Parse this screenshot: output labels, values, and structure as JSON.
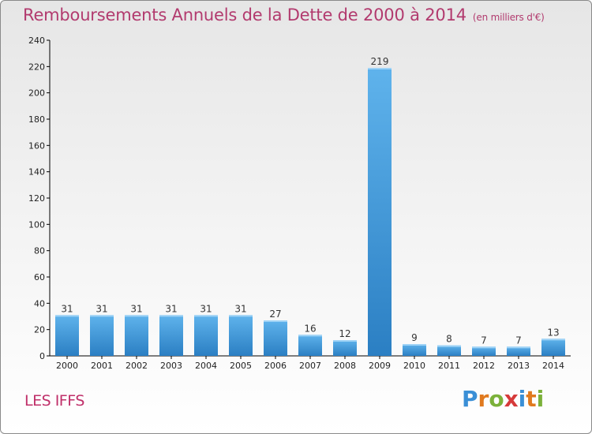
{
  "chart_data": {
    "type": "bar",
    "title": "Remboursements Annuels de la Dette de 2000 à 2014",
    "subtitle": "(en milliers d'€)",
    "xlabel": "",
    "ylabel": "",
    "categories": [
      "2000",
      "2001",
      "2002",
      "2003",
      "2004",
      "2005",
      "2006",
      "2007",
      "2008",
      "2009",
      "2010",
      "2011",
      "2012",
      "2013",
      "2014"
    ],
    "values": [
      31,
      31,
      31,
      31,
      31,
      31,
      27,
      16,
      12,
      219,
      9,
      8,
      7,
      7,
      13
    ],
    "ylim": [
      0,
      240
    ],
    "yticks": [
      0,
      20,
      40,
      60,
      80,
      100,
      120,
      140,
      160,
      180,
      200,
      220,
      240
    ],
    "grid": false,
    "legend": "none"
  },
  "footer": {
    "commune": "LES IFFS",
    "logo_text": "Proxiti"
  },
  "colors": {
    "bar_light": "#5cb0ea",
    "bar_dark": "#2a7fc4",
    "title": "#b23a6e",
    "axis": "#000000"
  }
}
